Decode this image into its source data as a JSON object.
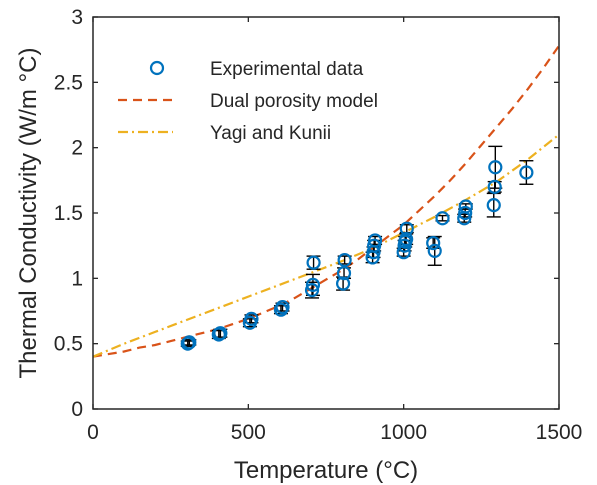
{
  "chart_data": {
    "type": "scatter",
    "xlabel": "Temperature (°C)",
    "ylabel": "Thermal Conductivity (W/m °C)",
    "xlim": [
      0,
      1500
    ],
    "ylim": [
      0,
      3
    ],
    "xticks": [
      "0",
      "500",
      "1000",
      "1500"
    ],
    "yticks": [
      "0",
      "0.5",
      "1",
      "1.5",
      "2",
      "2.5",
      "3"
    ],
    "xtick_values": [
      0,
      500,
      1000,
      1500
    ],
    "ytick_values": [
      0,
      0.5,
      1,
      1.5,
      2,
      2.5,
      3
    ],
    "grid": false,
    "legend_position": "top-left",
    "series": [
      {
        "name": "Experimental data",
        "kind": "markers-with-errorbars",
        "color": "#0072bd",
        "errorbar_color": "#000000",
        "points": [
          {
            "x": 305,
            "y": 0.5,
            "err": 0.02
          },
          {
            "x": 310,
            "y": 0.51,
            "err": 0.02
          },
          {
            "x": 405,
            "y": 0.57,
            "err": 0.03
          },
          {
            "x": 410,
            "y": 0.58,
            "err": 0.03
          },
          {
            "x": 505,
            "y": 0.66,
            "err": 0.03
          },
          {
            "x": 510,
            "y": 0.69,
            "err": 0.03
          },
          {
            "x": 605,
            "y": 0.76,
            "err": 0.03
          },
          {
            "x": 610,
            "y": 0.78,
            "err": 0.03
          },
          {
            "x": 705,
            "y": 0.91,
            "err": 0.06
          },
          {
            "x": 708,
            "y": 0.95,
            "err": 0.08
          },
          {
            "x": 710,
            "y": 1.12,
            "err": 0.05
          },
          {
            "x": 805,
            "y": 0.96,
            "err": 0.05
          },
          {
            "x": 808,
            "y": 1.04,
            "err": 0.04
          },
          {
            "x": 810,
            "y": 1.14,
            "err": 0.03
          },
          {
            "x": 900,
            "y": 1.16,
            "err": 0.04
          },
          {
            "x": 903,
            "y": 1.2,
            "err": 0.04
          },
          {
            "x": 905,
            "y": 1.25,
            "err": 0.04
          },
          {
            "x": 908,
            "y": 1.29,
            "err": 0.03
          },
          {
            "x": 1000,
            "y": 1.2,
            "err": 0.03
          },
          {
            "x": 1003,
            "y": 1.25,
            "err": 0.04
          },
          {
            "x": 1005,
            "y": 1.28,
            "err": 0.04
          },
          {
            "x": 1008,
            "y": 1.3,
            "err": 0.04
          },
          {
            "x": 1010,
            "y": 1.38,
            "err": 0.03
          },
          {
            "x": 1095,
            "y": 1.27,
            "err": 0.04
          },
          {
            "x": 1100,
            "y": 1.21,
            "err": 0.11
          },
          {
            "x": 1125,
            "y": 1.46,
            "err": 0.02
          },
          {
            "x": 1195,
            "y": 1.46,
            "err": 0.03
          },
          {
            "x": 1198,
            "y": 1.5,
            "err": 0.03
          },
          {
            "x": 1200,
            "y": 1.55,
            "err": 0.02
          },
          {
            "x": 1290,
            "y": 1.56,
            "err": 0.09
          },
          {
            "x": 1293,
            "y": 1.7,
            "err": 0.04
          },
          {
            "x": 1295,
            "y": 1.85,
            "err": 0.16
          },
          {
            "x": 1395,
            "y": 1.81,
            "err": 0.09
          }
        ]
      },
      {
        "name": "Dual porosity model",
        "kind": "line",
        "style": "dashed",
        "color": "#d95319",
        "x": [
          0,
          50,
          100,
          150,
          200,
          250,
          300,
          350,
          400,
          450,
          500,
          550,
          600,
          650,
          700,
          750,
          800,
          850,
          900,
          950,
          1000,
          1050,
          1100,
          1150,
          1200,
          1250,
          1300,
          1350,
          1400,
          1450,
          1500
        ],
        "y": [
          0.4,
          0.42,
          0.44,
          0.47,
          0.49,
          0.52,
          0.55,
          0.58,
          0.61,
          0.65,
          0.69,
          0.74,
          0.79,
          0.85,
          0.92,
          0.99,
          1.06,
          1.14,
          1.23,
          1.32,
          1.41,
          1.52,
          1.63,
          1.75,
          1.88,
          2.02,
          2.16,
          2.3,
          2.45,
          2.61,
          2.78
        ]
      },
      {
        "name": "Yagi and Kunii",
        "kind": "line",
        "style": "dash-dot",
        "color": "#edb120",
        "x": [
          0,
          100,
          200,
          300,
          400,
          500,
          600,
          700,
          800,
          900,
          1000,
          1100,
          1200,
          1300,
          1400,
          1500
        ],
        "y": [
          0.4,
          0.5,
          0.59,
          0.68,
          0.77,
          0.86,
          0.95,
          1.04,
          1.13,
          1.23,
          1.35,
          1.47,
          1.6,
          1.74,
          1.91,
          2.1
        ]
      }
    ]
  }
}
